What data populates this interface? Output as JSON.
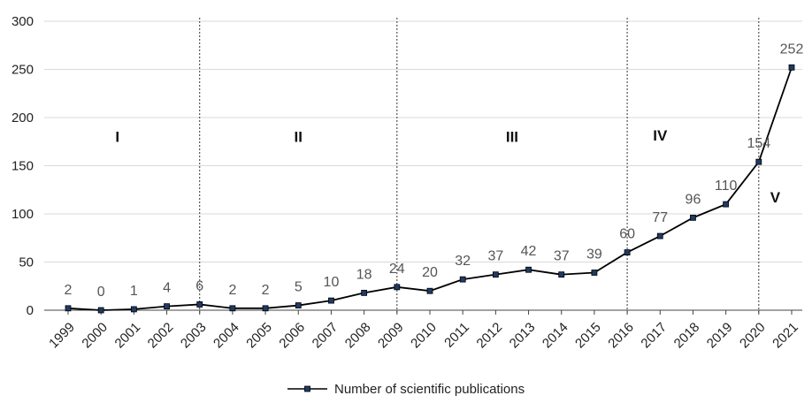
{
  "chart_data": {
    "type": "line",
    "categories": [
      "1999",
      "2000",
      "2001",
      "2002",
      "2003",
      "2004",
      "2005",
      "2006",
      "2007",
      "2008",
      "2009",
      "2010",
      "2011",
      "2012",
      "2013",
      "2014",
      "2015",
      "2016",
      "2017",
      "2018",
      "2019",
      "2020",
      "2021"
    ],
    "series": [
      {
        "name": "Number of scientific publications",
        "values": [
          2,
          0,
          1,
          4,
          6,
          2,
          2,
          5,
          10,
          18,
          24,
          20,
          32,
          37,
          42,
          37,
          39,
          60,
          77,
          96,
          110,
          154,
          252
        ]
      }
    ],
    "data_labels": [
      "2",
      "0",
      "1",
      "4",
      "6",
      "2",
      "2",
      "5",
      "10",
      "18",
      "24",
      "20",
      "32",
      "37",
      "42",
      "37",
      "39",
      "60",
      "77",
      "96",
      "110",
      "154",
      "252"
    ],
    "ylim": [
      0,
      300
    ],
    "yticks": [
      0,
      50,
      100,
      150,
      200,
      250,
      300
    ],
    "ytick_labels": [
      "0",
      "50",
      "100",
      "150",
      "200",
      "250",
      "300"
    ],
    "grid": "horizontal",
    "legend_position": "bottom",
    "line_color": "#000000",
    "marker_color": "#1f3a64",
    "period_dividers_at": [
      "2003",
      "2009",
      "2016",
      "2020"
    ],
    "period_labels": [
      {
        "label": "I",
        "x": 2000.5,
        "y": 175
      },
      {
        "label": "II",
        "x": 2006,
        "y": 175
      },
      {
        "label": "III",
        "x": 2012.5,
        "y": 175
      },
      {
        "label": "IV",
        "x": 2017,
        "y": 176
      },
      {
        "label": "V",
        "x": 2020.5,
        "y": 112
      }
    ]
  }
}
